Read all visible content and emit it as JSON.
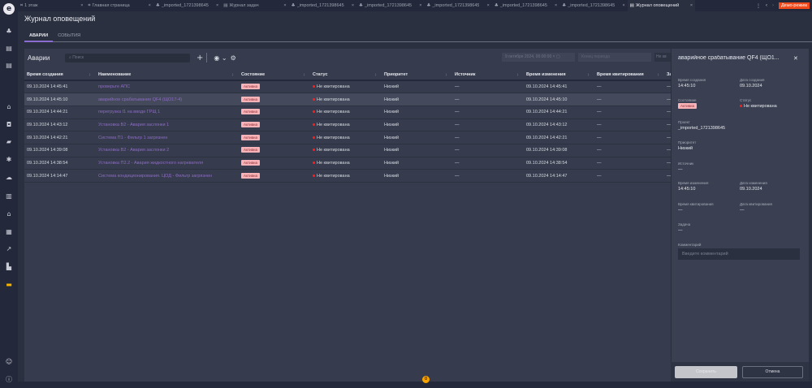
{
  "app": {
    "logo": "e",
    "demo": "Демо-режим"
  },
  "tabs": [
    {
      "label": "1 этаж",
      "icon": "schema-icon"
    },
    {
      "label": "Главная страница",
      "icon": "schema-icon"
    },
    {
      "label": "_imported_1721398645",
      "icon": "hierarchy-icon"
    },
    {
      "label": "Журнал задач",
      "icon": "document-icon"
    },
    {
      "label": "_imported_1721398645",
      "icon": "hierarchy-icon"
    },
    {
      "label": "_imported_1721398645",
      "icon": "hierarchy-icon"
    },
    {
      "label": "_imported_1721398645",
      "icon": "hierarchy-icon"
    },
    {
      "label": "_imported_1721398645",
      "icon": "hierarchy-icon"
    },
    {
      "label": "_imported_1721398645",
      "icon": "hierarchy-icon"
    },
    {
      "label": "Журнал оповещений",
      "icon": "document-icon",
      "active": true
    }
  ],
  "page": {
    "title": "Журнал оповещений",
    "subtabs": [
      "АВАРИИ",
      "СОБЫТИЯ"
    ]
  },
  "toolbar": {
    "title": "Аварии",
    "search_placeholder": "Поиск",
    "date_from": "9 октября 2024, 00:00:00",
    "date_to_placeholder": "Конец периода",
    "ack_filter": "Не кв"
  },
  "table": {
    "columns": [
      "Время создания",
      "Наименование",
      "Состояние",
      "Статус",
      "Приоритет",
      "Источник",
      "Время изменения",
      "Время квитирования",
      "За"
    ],
    "rows": [
      [
        "09.10.2024 14:45:41",
        "проверьте АПС",
        "Активна",
        "Не квитирована",
        "Низкий",
        "—",
        "09.10.2024 14:45:41",
        "—",
        "—"
      ],
      [
        "09.10.2024 14:45:10",
        "аварийное срабатывание QF4 (ЩО17-4)",
        "Активна",
        "Не квитирована",
        "Низкий",
        "—",
        "09.10.2024 14:45:10",
        "—",
        "—"
      ],
      [
        "09.10.2024 14:44:21",
        "перегрузка I1 на вводе ГРЩ 1",
        "Активна",
        "Не квитирована",
        "Низкий",
        "—",
        "09.10.2024 14:44:21",
        "—",
        "—"
      ],
      [
        "09.10.2024 14:43:12",
        "Установка В2 - Авария заслонки 1",
        "Активна",
        "Не квитирована",
        "Низкий",
        "—",
        "09.10.2024 14:43:12",
        "—",
        "—"
      ],
      [
        "09.10.2024 14:42:21",
        "Система П1 - Фильтр 1 загрязнен",
        "Активна",
        "Не квитирована",
        "Низкий",
        "—",
        "09.10.2024 14:42:21",
        "—",
        "—"
      ],
      [
        "09.10.2024 14:39:08",
        "Установка В2 - Авария заслонки 2",
        "Активна",
        "Не квитирована",
        "Низкий",
        "—",
        "09.10.2024 14:39:08",
        "—",
        "—"
      ],
      [
        "09.10.2024 14:38:54",
        "Установка П2.2 - Авария жидкостного нагревателя",
        "Активна",
        "Не квитирована",
        "Низкий",
        "—",
        "09.10.2024 14:38:54",
        "—",
        "—"
      ],
      [
        "09.10.2024 14:14:47",
        "Система кондиционирования. ЦОД - Фильтр загрязнен",
        "Активна",
        "Не квитирована",
        "Низкий",
        "—",
        "09.10.2024 14:14:47",
        "—",
        "—"
      ]
    ],
    "selected_row": 1
  },
  "detail": {
    "title": "аварийное срабатывание QF4 (ЩО1...",
    "created_time_label": "Время создания",
    "created_time": "14:45:10",
    "created_date_label": "Дата создания",
    "created_date": "09.10.2024",
    "state_label": "Состояние",
    "state": "Активна",
    "status_label": "Статус",
    "status": "Не квитирована",
    "project_label": "Проект",
    "project": "_imported_1721398645",
    "priority_label": "Приоритет",
    "priority": "Низкий",
    "source_label": "Источник",
    "source": "—",
    "mod_time_label": "Время изменения",
    "mod_time": "14:45:10",
    "mod_date_label": "Дата изменения",
    "mod_date": "09.10.2024",
    "ack_time_label": "Время квитирования",
    "ack_time": "—",
    "ack_date_label": "Дата квитирования",
    "ack_date": "—",
    "task_label": "Задача",
    "task": "—",
    "comment_label": "Комментарий",
    "comment_placeholder": "Введите комментарий",
    "save": "Сохранить",
    "cancel": "Отмена"
  },
  "notifications": {
    "count": "0"
  },
  "colors": {
    "accent": "#8b6ccf",
    "badge": "#f7b3b7",
    "status_dot": "#ff1e1e",
    "demo": "#f04a1c"
  }
}
